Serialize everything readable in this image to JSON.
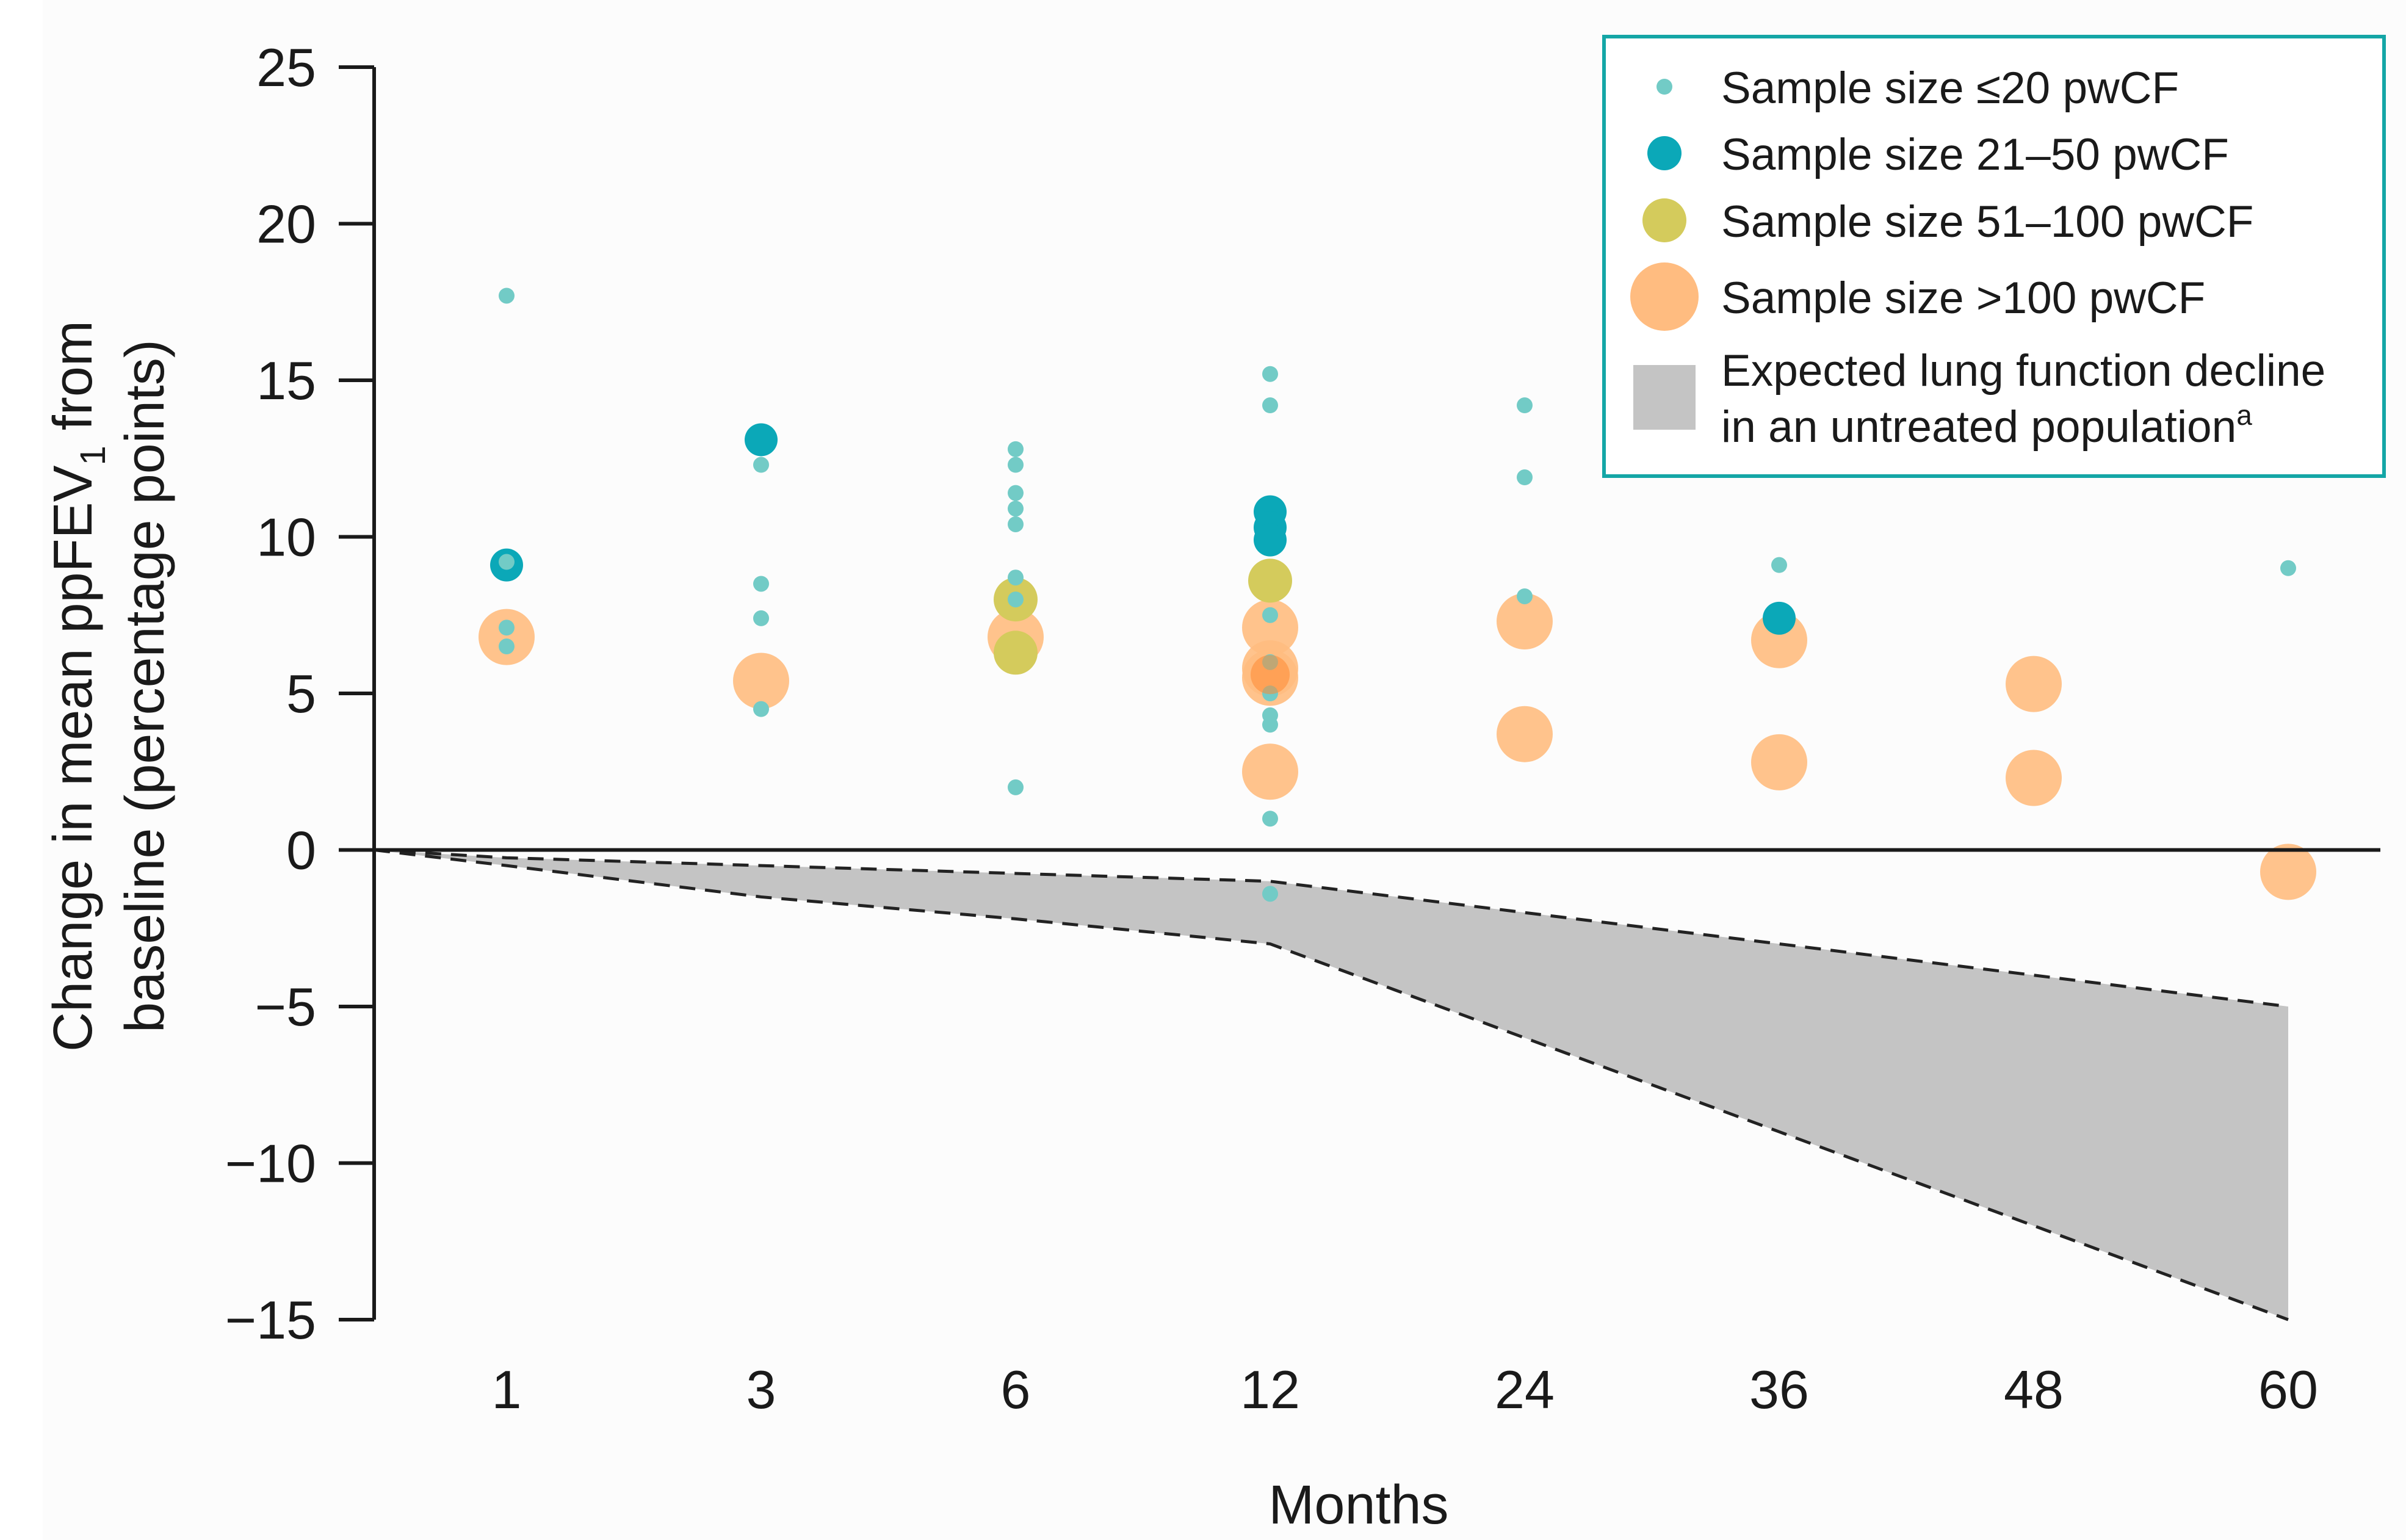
{
  "chart_data": {
    "type": "scatter",
    "title": "",
    "xlabel": "Months",
    "ylabel_line1": "Change in mean ppFEV",
    "ylabel_sub": "1",
    "ylabel_line1_suffix": " from",
    "ylabel_line2": "baseline (percentage points)",
    "x_categories": [
      "1",
      "3",
      "6",
      "12",
      "24",
      "36",
      "48",
      "60"
    ],
    "ylim": [
      -15,
      25
    ],
    "yticks": [
      25,
      20,
      15,
      10,
      5,
      0,
      -5,
      -10,
      -15
    ],
    "ytick_labels": [
      "25",
      "20",
      "15",
      "10",
      "5",
      "0",
      "−5",
      "−10",
      "−15"
    ],
    "colors": {
      "small": "#72cbc6",
      "medium": "#0ba8b8",
      "large": "#d4cb5c",
      "xlarge": "#ffbc80",
      "xlarge_dark": "#ff8a33",
      "band": "#c4c4c4",
      "legend_border": "#14a6a6"
    },
    "legend": [
      {
        "key": "small",
        "label": "Sample size ≤20 pwCF"
      },
      {
        "key": "medium",
        "label": "Sample size 21–50 pwCF"
      },
      {
        "key": "large",
        "label": "Sample size 51–100 pwCF"
      },
      {
        "key": "xlarge",
        "label": "Sample size >100 pwCF"
      },
      {
        "key": "band",
        "label_line1": "Expected lung function decline",
        "label_line2": "in an untreated population",
        "label_sup": "a"
      }
    ],
    "band": {
      "x": [
        "0",
        "1",
        "3",
        "6",
        "12",
        "24",
        "36",
        "48",
        "60"
      ],
      "upper": [
        0,
        -0.25,
        -0.5,
        -0.75,
        -1,
        -2,
        -3,
        -4,
        -5
      ],
      "lower": [
        0,
        -0.5,
        -1.5,
        -2.2,
        -3,
        -6,
        -9,
        -12,
        -15
      ]
    },
    "series": [
      {
        "name": "Sample size ≤20 pwCF",
        "key": "small",
        "points": [
          {
            "x": "1",
            "y": 17.7
          },
          {
            "x": "1",
            "y": 9.2
          },
          {
            "x": "1",
            "y": 7.1
          },
          {
            "x": "1",
            "y": 6.5
          },
          {
            "x": "3",
            "y": 12.3
          },
          {
            "x": "3",
            "y": 8.5
          },
          {
            "x": "3",
            "y": 7.4
          },
          {
            "x": "3",
            "y": 4.5
          },
          {
            "x": "6",
            "y": 12.8
          },
          {
            "x": "6",
            "y": 12.3
          },
          {
            "x": "6",
            "y": 11.4
          },
          {
            "x": "6",
            "y": 10.9
          },
          {
            "x": "6",
            "y": 10.4
          },
          {
            "x": "6",
            "y": 8.7
          },
          {
            "x": "6",
            "y": 8.0
          },
          {
            "x": "6",
            "y": 2.0
          },
          {
            "x": "12",
            "y": 15.2
          },
          {
            "x": "12",
            "y": 14.2
          },
          {
            "x": "12",
            "y": 7.5
          },
          {
            "x": "12",
            "y": 6.0
          },
          {
            "x": "12",
            "y": 5.0
          },
          {
            "x": "12",
            "y": 4.3
          },
          {
            "x": "12",
            "y": 4.0
          },
          {
            "x": "12",
            "y": 1.0
          },
          {
            "x": "12",
            "y": -1.4
          },
          {
            "x": "24",
            "y": 14.2
          },
          {
            "x": "24",
            "y": 11.9
          },
          {
            "x": "24",
            "y": 8.1
          },
          {
            "x": "36",
            "y": 9.1
          },
          {
            "x": "60",
            "y": 9.0
          }
        ]
      },
      {
        "name": "Sample size 21–50 pwCF",
        "key": "medium",
        "points": [
          {
            "x": "1",
            "y": 9.1
          },
          {
            "x": "3",
            "y": 13.1
          },
          {
            "x": "12",
            "y": 10.8
          },
          {
            "x": "12",
            "y": 10.3
          },
          {
            "x": "12",
            "y": 9.9
          },
          {
            "x": "36",
            "y": 7.4
          }
        ]
      },
      {
        "name": "Sample size 51–100 pwCF",
        "key": "large",
        "points": [
          {
            "x": "6",
            "y": 8.0
          },
          {
            "x": "6",
            "y": 6.3
          },
          {
            "x": "12",
            "y": 8.6
          }
        ]
      },
      {
        "name": "Sample size >100 pwCF",
        "key": "xlarge",
        "points": [
          {
            "x": "1",
            "y": 6.8
          },
          {
            "x": "3",
            "y": 5.4
          },
          {
            "x": "6",
            "y": 6.8
          },
          {
            "x": "12",
            "y": 7.1
          },
          {
            "x": "12",
            "y": 5.8
          },
          {
            "x": "12",
            "y": 5.5
          },
          {
            "x": "12",
            "y": 2.5
          },
          {
            "x": "24",
            "y": 7.3
          },
          {
            "x": "24",
            "y": 3.7
          },
          {
            "x": "36",
            "y": 6.7
          },
          {
            "x": "36",
            "y": 2.8
          },
          {
            "x": "48",
            "y": 5.3
          },
          {
            "x": "48",
            "y": 2.3
          },
          {
            "x": "60",
            "y": -0.7
          }
        ]
      }
    ]
  }
}
